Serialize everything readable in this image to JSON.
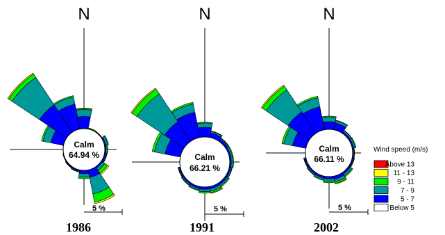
{
  "chart_data": [
    {
      "type": "wind-rose",
      "title": "1986",
      "north_label": "N",
      "calm_label": "Calm",
      "calm_value": "64.94 %",
      "scale_label": "5 %",
      "bin_labels": [
        "Below  5",
        "5 - 7",
        "7 - 9",
        "9 - 11",
        "11 - 13",
        "Above 13"
      ],
      "sectors": [
        {
          "direction_deg": 0,
          "values": [
            0,
            1.6,
            0.9,
            0.12,
            0,
            0.05
          ]
        },
        {
          "direction_deg": 22.5,
          "values": [
            0,
            0,
            0.05,
            0.1,
            0,
            0
          ]
        },
        {
          "direction_deg": 45,
          "values": [
            0,
            0,
            0.05,
            0.05,
            0,
            0
          ]
        },
        {
          "direction_deg": 67.5,
          "values": [
            0,
            0.2,
            0.25,
            0.1,
            0,
            0
          ]
        },
        {
          "direction_deg": 90,
          "values": [
            0,
            0.15,
            0.15,
            0.1,
            0,
            0
          ]
        },
        {
          "direction_deg": 112.5,
          "values": [
            0,
            0.2,
            0.1,
            0.05,
            0,
            0
          ]
        },
        {
          "direction_deg": 135,
          "values": [
            0,
            0.2,
            0.35,
            0.45,
            0.2,
            0
          ]
        },
        {
          "direction_deg": 157.5,
          "values": [
            0,
            1.0,
            2.2,
            1.1,
            0.2,
            0
          ]
        },
        {
          "direction_deg": 180,
          "values": [
            0,
            0.45,
            0.45,
            0.2,
            0,
            0
          ]
        },
        {
          "direction_deg": 202.5,
          "values": [
            0,
            0.15,
            0.1,
            0.05,
            0,
            0
          ]
        },
        {
          "direction_deg": 225,
          "values": [
            0,
            0.1,
            0.05,
            0.05,
            0,
            0
          ]
        },
        {
          "direction_deg": 247.5,
          "values": [
            0,
            0.05,
            0.05,
            0,
            0,
            0
          ]
        },
        {
          "direction_deg": 270,
          "values": [
            0,
            0,
            0,
            0,
            0,
            0
          ]
        },
        {
          "direction_deg": 292.5,
          "values": [
            0,
            1.7,
            1.05,
            0.2,
            0,
            0
          ]
        },
        {
          "direction_deg": 315,
          "values": [
            0,
            4.3,
            4.3,
            0.55,
            0.15,
            0
          ]
        },
        {
          "direction_deg": 337.5,
          "values": [
            0,
            3.3,
            1.0,
            0.15,
            0,
            0
          ]
        }
      ]
    },
    {
      "type": "wind-rose",
      "title": "1991",
      "north_label": "N",
      "calm_label": "Calm",
      "calm_value": "66.21 %",
      "scale_label": "5 %",
      "bin_labels": [
        "Below  5",
        "5 - 7",
        "7 - 9",
        "9 - 11",
        "11 - 13",
        "Above 13"
      ],
      "sectors": [
        {
          "direction_deg": 0,
          "values": [
            0,
            1.25,
            0.55,
            0.1,
            0,
            0
          ]
        },
        {
          "direction_deg": 22.5,
          "values": [
            0,
            0.6,
            0.2,
            0.05,
            0,
            0
          ]
        },
        {
          "direction_deg": 45,
          "values": [
            0,
            0.3,
            0.15,
            0.05,
            0,
            0
          ]
        },
        {
          "direction_deg": 67.5,
          "values": [
            0,
            0.2,
            0.2,
            0.1,
            0,
            0
          ]
        },
        {
          "direction_deg": 90,
          "values": [
            0,
            0.2,
            0.2,
            0.1,
            0,
            0
          ]
        },
        {
          "direction_deg": 112.5,
          "values": [
            0,
            0.2,
            0.15,
            0.05,
            0,
            0
          ]
        },
        {
          "direction_deg": 135,
          "values": [
            0,
            0.25,
            0.2,
            0.15,
            0,
            0
          ]
        },
        {
          "direction_deg": 157.5,
          "values": [
            0,
            0.3,
            0.3,
            0.2,
            0.1,
            0
          ]
        },
        {
          "direction_deg": 180,
          "values": [
            0,
            0.3,
            0.3,
            0.2,
            0,
            0
          ]
        },
        {
          "direction_deg": 202.5,
          "values": [
            0,
            0.25,
            0.2,
            0.1,
            0,
            0
          ]
        },
        {
          "direction_deg": 225,
          "values": [
            0,
            0.2,
            0.15,
            0.05,
            0,
            0
          ]
        },
        {
          "direction_deg": 247.5,
          "values": [
            0,
            0.15,
            0.1,
            0.05,
            0,
            0
          ]
        },
        {
          "direction_deg": 270,
          "values": [
            0,
            0,
            0,
            0,
            0,
            0
          ]
        },
        {
          "direction_deg": 292.5,
          "values": [
            0,
            2.0,
            1.4,
            0.3,
            0,
            0
          ]
        },
        {
          "direction_deg": 315,
          "values": [
            0,
            3.0,
            4.3,
            0.75,
            0.15,
            0
          ]
        },
        {
          "direction_deg": 337.5,
          "values": [
            0,
            3.3,
            1.1,
            0.2,
            0,
            0
          ]
        }
      ]
    },
    {
      "type": "wind-rose",
      "title": "2002",
      "north_label": "N",
      "calm_label": "Calm",
      "calm_value": "66.11 %",
      "scale_label": "5 %",
      "bin_labels": [
        "Below  5",
        "5 - 7",
        "7 - 9",
        "9 - 11",
        "11 - 13",
        "Above 13"
      ],
      "sectors": [
        {
          "direction_deg": 0,
          "values": [
            0,
            1.0,
            0.6,
            0.1,
            0,
            0
          ]
        },
        {
          "direction_deg": 22.5,
          "values": [
            0,
            0.9,
            0.3,
            0.05,
            0,
            0
          ]
        },
        {
          "direction_deg": 45,
          "values": [
            0,
            0.2,
            0.2,
            0.05,
            0,
            0
          ]
        },
        {
          "direction_deg": 67.5,
          "values": [
            0,
            0.2,
            0.2,
            0.1,
            0,
            0
          ]
        },
        {
          "direction_deg": 90,
          "values": [
            0,
            0.1,
            0.1,
            0.05,
            0,
            0
          ]
        },
        {
          "direction_deg": 112.5,
          "values": [
            0,
            0.15,
            0.1,
            0.05,
            0,
            0
          ]
        },
        {
          "direction_deg": 135,
          "values": [
            0,
            0.25,
            0.25,
            0.15,
            0,
            0
          ]
        },
        {
          "direction_deg": 157.5,
          "values": [
            0,
            0.4,
            0.35,
            0.2,
            0.1,
            0
          ]
        },
        {
          "direction_deg": 180,
          "values": [
            0,
            0.3,
            0.3,
            0.2,
            0,
            0
          ]
        },
        {
          "direction_deg": 202.5,
          "values": [
            0,
            0.25,
            0.2,
            0.1,
            0,
            0
          ]
        },
        {
          "direction_deg": 225,
          "values": [
            0,
            0.2,
            0.15,
            0.05,
            0,
            0
          ]
        },
        {
          "direction_deg": 247.5,
          "values": [
            0,
            0.15,
            0.1,
            0.05,
            0,
            0
          ]
        },
        {
          "direction_deg": 270,
          "values": [
            0,
            0,
            0,
            0,
            0,
            0
          ]
        },
        {
          "direction_deg": 292.5,
          "values": [
            0,
            1.75,
            1.15,
            0.25,
            0,
            0
          ]
        },
        {
          "direction_deg": 315,
          "values": [
            0,
            3.3,
            3.4,
            0.6,
            0.15,
            0
          ]
        },
        {
          "direction_deg": 337.5,
          "values": [
            0,
            3.0,
            1.2,
            0.2,
            0,
            0
          ]
        }
      ]
    }
  ],
  "legend": {
    "title": "Wind speed (m/s)",
    "items": [
      {
        "label": "Above 13",
        "color": "#ff0000"
      },
      {
        "label": "11 - 13",
        "color": "#ffff00"
      },
      {
        "label": "9 - 11",
        "color": "#00ee00"
      },
      {
        "label": "7 - 9",
        "color": "#009999"
      },
      {
        "label": "5 - 7",
        "color": "#0000ff"
      },
      {
        "label": "Below  5",
        "color": "#ffffff"
      }
    ]
  },
  "bin_colors": [
    "#ffffff",
    "#0000ff",
    "#009999",
    "#00ee00",
    "#ffff00",
    "#ff0000"
  ]
}
